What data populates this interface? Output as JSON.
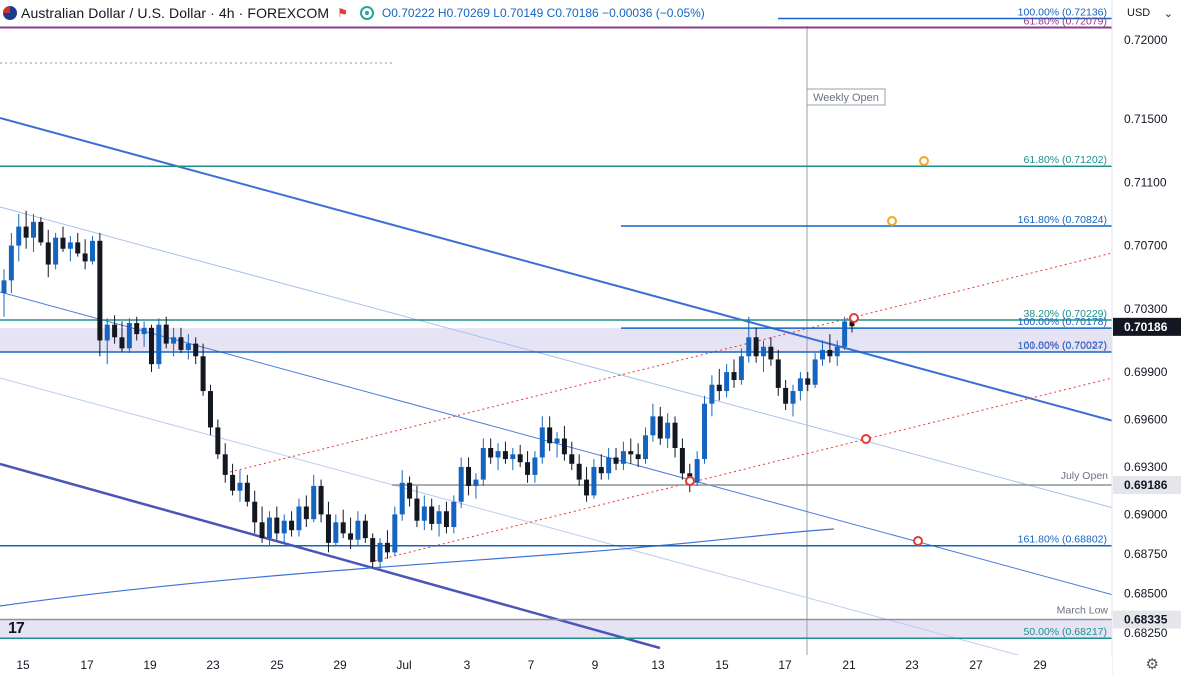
{
  "header": {
    "title": "Australian Dollar / U.S. Dollar · 4h · FOREXCOM",
    "ohlc": "O0.70222 H0.70269 L0.70149 C0.70186 −0.00036 (−0.05%)"
  },
  "currency": "USD",
  "logo": "17",
  "colors": {
    "up": "#1565c0",
    "down": "#131722",
    "channel": "#3b6fd6",
    "fib_teal": "#1f8f8a",
    "fib_purple": "#8e3b8e",
    "fib_blue": "#1565c0",
    "zone_fill": "#e6e4f4",
    "median_red": "#e53935",
    "marker_orange": "#f5a623"
  },
  "chart_data": {
    "type": "candlestick",
    "y_axis": {
      "ticks": [
        "0.72000",
        "0.71500",
        "0.71100",
        "0.70700",
        "0.70300",
        "0.69900",
        "0.69600",
        "0.69300",
        "0.69000",
        "0.68750",
        "0.68500",
        "0.68250"
      ],
      "range": [
        0.682,
        0.7214
      ]
    },
    "x_axis": {
      "ticks": [
        "15",
        "17",
        "19",
        "23",
        "25",
        "29",
        "Jul",
        "3",
        "7",
        "9",
        "13",
        "15",
        "17",
        "21",
        "23",
        "27",
        "29"
      ]
    },
    "price_labels": [
      {
        "label": "0.70186",
        "value": 0.70186,
        "style": "current"
      },
      {
        "label": "0.69186",
        "value": 0.69186,
        "style": "gray"
      },
      {
        "label": "0.68335",
        "value": 0.68335,
        "style": "gray"
      }
    ],
    "levels": [
      {
        "text": "100.00% (0.72136)",
        "value": 0.72136,
        "color": "#1565c0"
      },
      {
        "text": "61.80% (0.72079)",
        "value": 0.72079,
        "color": "#8e3b8e"
      },
      {
        "text": "61.80% (0.71202)",
        "value": 0.71202,
        "color": "#1f8f8a"
      },
      {
        "text": "161.80% (0.70824)",
        "value": 0.70824,
        "color": "#1565c0"
      },
      {
        "text": "38.20% (0.70229)",
        "value": 0.70229,
        "color": "#1f8f8a"
      },
      {
        "text": "100.00% (0.70178)",
        "value": 0.70178,
        "color": "#1565c0"
      },
      {
        "text": "61.80% (0.70032)",
        "value": 0.70032,
        "color": "#c080c0"
      },
      {
        "text": "100.00% (0.70027)",
        "value": 0.70027,
        "color": "#1565c0"
      },
      {
        "text": "161.80% (0.68802)",
        "value": 0.68802,
        "color": "#1565c0"
      },
      {
        "text": "50.00% (0.68217)",
        "value": 0.68217,
        "color": "#1f8f8a"
      }
    ],
    "annotations": [
      "Weekly Open",
      "July Open",
      "March Low"
    ],
    "candles": [
      {
        "o": 0.704,
        "h": 0.7055,
        "l": 0.7025,
        "c": 0.7048
      },
      {
        "o": 0.7048,
        "h": 0.7078,
        "l": 0.704,
        "c": 0.707
      },
      {
        "o": 0.707,
        "h": 0.709,
        "l": 0.706,
        "c": 0.7082
      },
      {
        "o": 0.7082,
        "h": 0.7092,
        "l": 0.7068,
        "c": 0.7075
      },
      {
        "o": 0.7075,
        "h": 0.709,
        "l": 0.7066,
        "c": 0.7085
      },
      {
        "o": 0.7085,
        "h": 0.7088,
        "l": 0.707,
        "c": 0.7072
      },
      {
        "o": 0.7072,
        "h": 0.708,
        "l": 0.705,
        "c": 0.7058
      },
      {
        "o": 0.7058,
        "h": 0.7078,
        "l": 0.7055,
        "c": 0.7075
      },
      {
        "o": 0.7075,
        "h": 0.7082,
        "l": 0.7066,
        "c": 0.7068
      },
      {
        "o": 0.7068,
        "h": 0.7076,
        "l": 0.706,
        "c": 0.7072
      },
      {
        "o": 0.7072,
        "h": 0.7078,
        "l": 0.7063,
        "c": 0.7065
      },
      {
        "o": 0.7065,
        "h": 0.7074,
        "l": 0.7055,
        "c": 0.706
      },
      {
        "o": 0.706,
        "h": 0.7076,
        "l": 0.7058,
        "c": 0.7073
      },
      {
        "o": 0.7073,
        "h": 0.7078,
        "l": 0.7,
        "c": 0.701
      },
      {
        "o": 0.701,
        "h": 0.7024,
        "l": 0.6995,
        "c": 0.702
      },
      {
        "o": 0.702,
        "h": 0.7026,
        "l": 0.7008,
        "c": 0.7012
      },
      {
        "o": 0.7012,
        "h": 0.7022,
        "l": 0.7003,
        "c": 0.7005
      },
      {
        "o": 0.7005,
        "h": 0.7024,
        "l": 0.7002,
        "c": 0.7021
      },
      {
        "o": 0.7021,
        "h": 0.7025,
        "l": 0.701,
        "c": 0.7014
      },
      {
        "o": 0.7014,
        "h": 0.7022,
        "l": 0.7006,
        "c": 0.7018
      },
      {
        "o": 0.7018,
        "h": 0.702,
        "l": 0.699,
        "c": 0.6995
      },
      {
        "o": 0.6995,
        "h": 0.7024,
        "l": 0.6992,
        "c": 0.702
      },
      {
        "o": 0.702,
        "h": 0.7025,
        "l": 0.7005,
        "c": 0.7008
      },
      {
        "o": 0.7008,
        "h": 0.7018,
        "l": 0.7,
        "c": 0.7012
      },
      {
        "o": 0.7012,
        "h": 0.7018,
        "l": 0.7002,
        "c": 0.7004
      },
      {
        "o": 0.7004,
        "h": 0.7014,
        "l": 0.6998,
        "c": 0.7008
      },
      {
        "o": 0.7008,
        "h": 0.7012,
        "l": 0.6995,
        "c": 0.7
      },
      {
        "o": 0.7,
        "h": 0.7008,
        "l": 0.6975,
        "c": 0.6978
      },
      {
        "o": 0.6978,
        "h": 0.6982,
        "l": 0.695,
        "c": 0.6955
      },
      {
        "o": 0.6955,
        "h": 0.696,
        "l": 0.6935,
        "c": 0.6938
      },
      {
        "o": 0.6938,
        "h": 0.6945,
        "l": 0.692,
        "c": 0.6925
      },
      {
        "o": 0.6925,
        "h": 0.6932,
        "l": 0.6912,
        "c": 0.6915
      },
      {
        "o": 0.6915,
        "h": 0.6928,
        "l": 0.6908,
        "c": 0.692
      },
      {
        "o": 0.692,
        "h": 0.6925,
        "l": 0.6905,
        "c": 0.6908
      },
      {
        "o": 0.6908,
        "h": 0.6915,
        "l": 0.6888,
        "c": 0.6895
      },
      {
        "o": 0.6895,
        "h": 0.6905,
        "l": 0.6882,
        "c": 0.6885
      },
      {
        "o": 0.6885,
        "h": 0.6902,
        "l": 0.688,
        "c": 0.6898
      },
      {
        "o": 0.6898,
        "h": 0.6905,
        "l": 0.6884,
        "c": 0.6888
      },
      {
        "o": 0.6888,
        "h": 0.69,
        "l": 0.6882,
        "c": 0.6896
      },
      {
        "o": 0.6896,
        "h": 0.6902,
        "l": 0.6886,
        "c": 0.689
      },
      {
        "o": 0.689,
        "h": 0.691,
        "l": 0.6886,
        "c": 0.6905
      },
      {
        "o": 0.6905,
        "h": 0.6912,
        "l": 0.6892,
        "c": 0.6897
      },
      {
        "o": 0.6897,
        "h": 0.6925,
        "l": 0.6895,
        "c": 0.6918
      },
      {
        "o": 0.6918,
        "h": 0.6922,
        "l": 0.6895,
        "c": 0.69
      },
      {
        "o": 0.69,
        "h": 0.6908,
        "l": 0.6876,
        "c": 0.6882
      },
      {
        "o": 0.6882,
        "h": 0.69,
        "l": 0.688,
        "c": 0.6895
      },
      {
        "o": 0.6895,
        "h": 0.6903,
        "l": 0.6885,
        "c": 0.6888
      },
      {
        "o": 0.6888,
        "h": 0.6898,
        "l": 0.6878,
        "c": 0.6884
      },
      {
        "o": 0.6884,
        "h": 0.6902,
        "l": 0.688,
        "c": 0.6896
      },
      {
        "o": 0.6896,
        "h": 0.69,
        "l": 0.6882,
        "c": 0.6885
      },
      {
        "o": 0.6885,
        "h": 0.6888,
        "l": 0.6866,
        "c": 0.687
      },
      {
        "o": 0.687,
        "h": 0.6885,
        "l": 0.6865,
        "c": 0.6882
      },
      {
        "o": 0.6882,
        "h": 0.689,
        "l": 0.6872,
        "c": 0.6876
      },
      {
        "o": 0.6876,
        "h": 0.6905,
        "l": 0.6874,
        "c": 0.69
      },
      {
        "o": 0.69,
        "h": 0.6928,
        "l": 0.6896,
        "c": 0.692
      },
      {
        "o": 0.692,
        "h": 0.6924,
        "l": 0.6905,
        "c": 0.691
      },
      {
        "o": 0.691,
        "h": 0.6918,
        "l": 0.6892,
        "c": 0.6896
      },
      {
        "o": 0.6896,
        "h": 0.6912,
        "l": 0.689,
        "c": 0.6905
      },
      {
        "o": 0.6905,
        "h": 0.691,
        "l": 0.689,
        "c": 0.6894
      },
      {
        "o": 0.6894,
        "h": 0.6906,
        "l": 0.6886,
        "c": 0.6902
      },
      {
        "o": 0.6902,
        "h": 0.6908,
        "l": 0.6888,
        "c": 0.6892
      },
      {
        "o": 0.6892,
        "h": 0.6912,
        "l": 0.6888,
        "c": 0.6908
      },
      {
        "o": 0.6908,
        "h": 0.6936,
        "l": 0.6904,
        "c": 0.693
      },
      {
        "o": 0.693,
        "h": 0.6936,
        "l": 0.6912,
        "c": 0.6918
      },
      {
        "o": 0.6918,
        "h": 0.6926,
        "l": 0.691,
        "c": 0.6922
      },
      {
        "o": 0.6922,
        "h": 0.6948,
        "l": 0.6918,
        "c": 0.6942
      },
      {
        "o": 0.6942,
        "h": 0.6948,
        "l": 0.6932,
        "c": 0.6936
      },
      {
        "o": 0.6936,
        "h": 0.6945,
        "l": 0.6928,
        "c": 0.694
      },
      {
        "o": 0.694,
        "h": 0.6946,
        "l": 0.6932,
        "c": 0.6935
      },
      {
        "o": 0.6935,
        "h": 0.6942,
        "l": 0.6928,
        "c": 0.6938
      },
      {
        "o": 0.6938,
        "h": 0.6944,
        "l": 0.693,
        "c": 0.6933
      },
      {
        "o": 0.6933,
        "h": 0.694,
        "l": 0.692,
        "c": 0.6925
      },
      {
        "o": 0.6925,
        "h": 0.694,
        "l": 0.692,
        "c": 0.6936
      },
      {
        "o": 0.6936,
        "h": 0.6962,
        "l": 0.6932,
        "c": 0.6955
      },
      {
        "o": 0.6955,
        "h": 0.6962,
        "l": 0.694,
        "c": 0.6945
      },
      {
        "o": 0.6945,
        "h": 0.6952,
        "l": 0.6936,
        "c": 0.6948
      },
      {
        "o": 0.6948,
        "h": 0.6956,
        "l": 0.6934,
        "c": 0.6938
      },
      {
        "o": 0.6938,
        "h": 0.6946,
        "l": 0.6928,
        "c": 0.6932
      },
      {
        "o": 0.6932,
        "h": 0.6938,
        "l": 0.6918,
        "c": 0.6922
      },
      {
        "o": 0.6922,
        "h": 0.693,
        "l": 0.6908,
        "c": 0.6912
      },
      {
        "o": 0.6912,
        "h": 0.6935,
        "l": 0.691,
        "c": 0.693
      },
      {
        "o": 0.693,
        "h": 0.6938,
        "l": 0.6922,
        "c": 0.6926
      },
      {
        "o": 0.6926,
        "h": 0.6942,
        "l": 0.6922,
        "c": 0.6936
      },
      {
        "o": 0.6936,
        "h": 0.6942,
        "l": 0.6928,
        "c": 0.6932
      },
      {
        "o": 0.6932,
        "h": 0.6946,
        "l": 0.6928,
        "c": 0.694
      },
      {
        "o": 0.694,
        "h": 0.6948,
        "l": 0.6932,
        "c": 0.6938
      },
      {
        "o": 0.6938,
        "h": 0.6945,
        "l": 0.693,
        "c": 0.6935
      },
      {
        "o": 0.6935,
        "h": 0.6955,
        "l": 0.6932,
        "c": 0.695
      },
      {
        "o": 0.695,
        "h": 0.697,
        "l": 0.6946,
        "c": 0.6962
      },
      {
        "o": 0.6962,
        "h": 0.6968,
        "l": 0.6944,
        "c": 0.6948
      },
      {
        "o": 0.6948,
        "h": 0.6964,
        "l": 0.6942,
        "c": 0.6958
      },
      {
        "o": 0.6958,
        "h": 0.6962,
        "l": 0.6936,
        "c": 0.6942
      },
      {
        "o": 0.6942,
        "h": 0.6948,
        "l": 0.6922,
        "c": 0.6926
      },
      {
        "o": 0.6926,
        "h": 0.6932,
        "l": 0.6914,
        "c": 0.692
      },
      {
        "o": 0.692,
        "h": 0.694,
        "l": 0.6918,
        "c": 0.6935
      },
      {
        "o": 0.6935,
        "h": 0.6975,
        "l": 0.6932,
        "c": 0.697
      },
      {
        "o": 0.697,
        "h": 0.6988,
        "l": 0.6962,
        "c": 0.6982
      },
      {
        "o": 0.6982,
        "h": 0.6992,
        "l": 0.6972,
        "c": 0.6978
      },
      {
        "o": 0.6978,
        "h": 0.6995,
        "l": 0.6974,
        "c": 0.699
      },
      {
        "o": 0.699,
        "h": 0.6998,
        "l": 0.698,
        "c": 0.6985
      },
      {
        "o": 0.6985,
        "h": 0.7005,
        "l": 0.6982,
        "c": 0.7
      },
      {
        "o": 0.7,
        "h": 0.7025,
        "l": 0.6996,
        "c": 0.7012
      },
      {
        "o": 0.7012,
        "h": 0.7018,
        "l": 0.6996,
        "c": 0.7
      },
      {
        "o": 0.7,
        "h": 0.701,
        "l": 0.699,
        "c": 0.7006
      },
      {
        "o": 0.7006,
        "h": 0.7012,
        "l": 0.6994,
        "c": 0.6998
      },
      {
        "o": 0.6998,
        "h": 0.7004,
        "l": 0.6975,
        "c": 0.698
      },
      {
        "o": 0.698,
        "h": 0.6985,
        "l": 0.6966,
        "c": 0.697
      },
      {
        "o": 0.697,
        "h": 0.6982,
        "l": 0.6962,
        "c": 0.6978
      },
      {
        "o": 0.6978,
        "h": 0.699,
        "l": 0.6972,
        "c": 0.6986
      },
      {
        "o": 0.6986,
        "h": 0.699,
        "l": 0.6978,
        "c": 0.6982
      },
      {
        "o": 0.6982,
        "h": 0.7002,
        "l": 0.698,
        "c": 0.6998
      },
      {
        "o": 0.6998,
        "h": 0.701,
        "l": 0.6994,
        "c": 0.7004
      },
      {
        "o": 0.7004,
        "h": 0.7014,
        "l": 0.6996,
        "c": 0.7
      },
      {
        "o": 0.7,
        "h": 0.701,
        "l": 0.6994,
        "c": 0.7006
      },
      {
        "o": 0.7006,
        "h": 0.7025,
        "l": 0.7004,
        "c": 0.7022
      },
      {
        "o": 0.7022,
        "h": 0.7027,
        "l": 0.7015,
        "c": 0.7019
      }
    ]
  }
}
